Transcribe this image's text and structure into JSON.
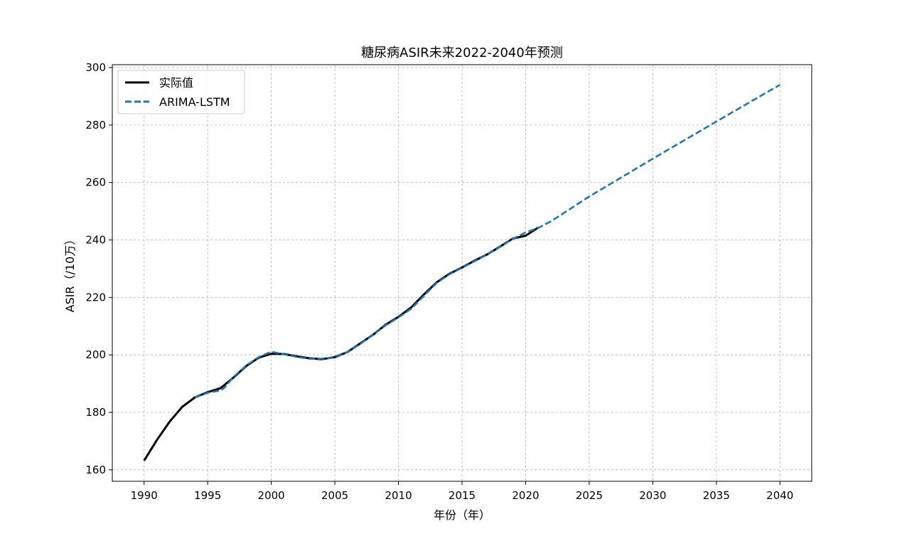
{
  "chart_data": {
    "type": "line",
    "title": "糖尿病ASIR未来2022-2040年预测",
    "xlabel": "年份（年）",
    "ylabel": "ASIR（/10万）",
    "xlim": [
      1987.5,
      2042.5
    ],
    "ylim": [
      156,
      301
    ],
    "xticks": [
      1990,
      1995,
      2000,
      2005,
      2010,
      2015,
      2020,
      2025,
      2030,
      2035,
      2040
    ],
    "yticks": [
      160,
      180,
      200,
      220,
      240,
      260,
      280,
      300
    ],
    "grid": true,
    "legend_position": "top-left",
    "series": [
      {
        "name": "实际值",
        "color": "#000000",
        "style": "solid",
        "x": [
          1990,
          1991,
          1992,
          1993,
          1994,
          1995,
          1996,
          1997,
          1998,
          1999,
          2000,
          2001,
          2002,
          2003,
          2004,
          2005,
          2006,
          2007,
          2008,
          2009,
          2010,
          2011,
          2012,
          2013,
          2014,
          2015,
          2016,
          2017,
          2018,
          2019,
          2020,
          2021
        ],
        "y": [
          163.2,
          170.3,
          176.7,
          181.9,
          185.2,
          187.0,
          188.4,
          192.0,
          196.0,
          199.0,
          200.4,
          200.3,
          199.5,
          198.8,
          198.5,
          199.2,
          201.0,
          204.0,
          207.0,
          210.5,
          213.2,
          216.5,
          221.0,
          225.2,
          228.2,
          230.4,
          232.8,
          235.0,
          237.7,
          240.5,
          241.5,
          244.3
        ]
      },
      {
        "name": "ARIMA-LSTM",
        "color": "#1f77b4",
        "style": "dashed",
        "x": [
          1994,
          1995,
          1996,
          1996.3,
          1997,
          1998,
          1999,
          2000,
          2001,
          2002,
          2003,
          2004,
          2005,
          2006,
          2007,
          2008,
          2009,
          2010,
          2011,
          2012,
          2013,
          2014,
          2015,
          2016,
          2017,
          2018,
          2019,
          2020,
          2021,
          2022,
          2025,
          2030,
          2035,
          2040
        ],
        "y": [
          185.2,
          186.8,
          187.6,
          188.5,
          192.2,
          196.2,
          199.2,
          201.1,
          200.2,
          199.3,
          198.6,
          198.7,
          199.0,
          201.0,
          203.8,
          207.0,
          210.3,
          213.0,
          216.0,
          220.5,
          225.0,
          228.0,
          230.3,
          232.6,
          235.0,
          237.6,
          240.4,
          242.6,
          244.2,
          246.5,
          255.1,
          268.3,
          281.2,
          294.0
        ]
      }
    ]
  }
}
